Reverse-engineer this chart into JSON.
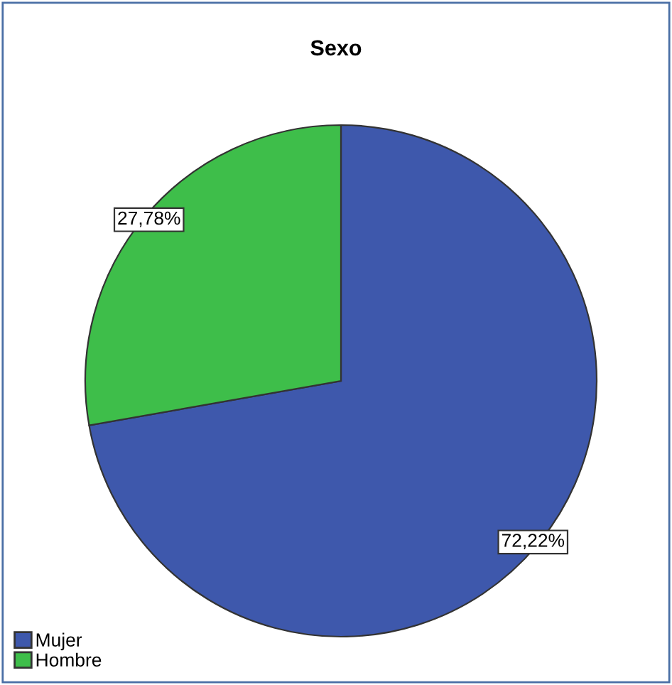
{
  "chart_data": {
    "type": "pie",
    "title": "Sexo",
    "categories": [
      "Mujer",
      "Hombre"
    ],
    "values": [
      72.22,
      27.78
    ],
    "colors": [
      "#3e58ac",
      "#3ebe4a"
    ],
    "value_labels": [
      "72,22%",
      "27,78%"
    ],
    "legend": "bottom left"
  }
}
